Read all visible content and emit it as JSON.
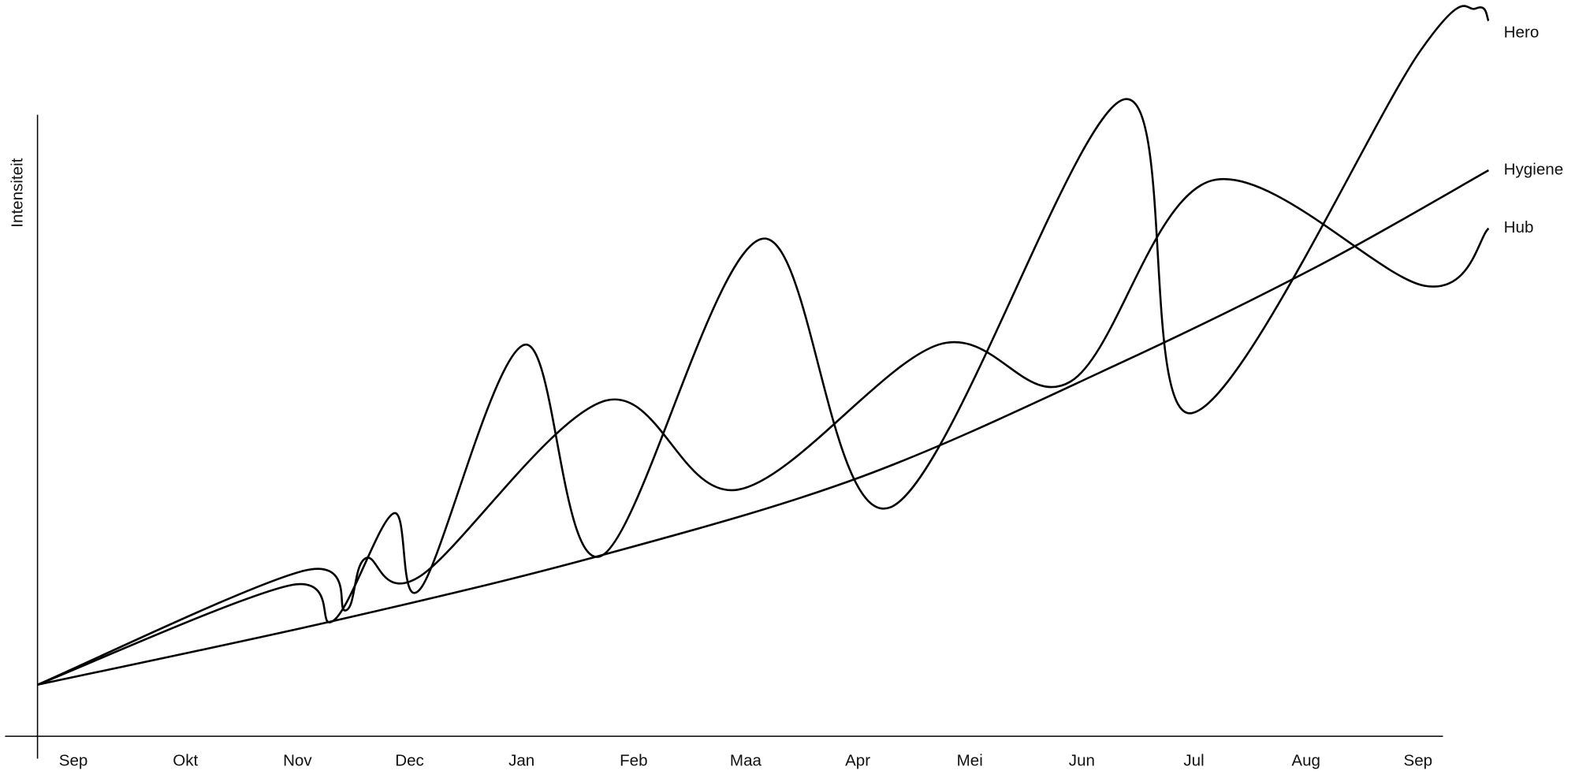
{
  "chart_data": {
    "type": "line",
    "y_label": "Intensiteit",
    "categories": [
      "Sep",
      "Okt",
      "Nov",
      "Dec",
      "Jan",
      "Feb",
      "Maa",
      "Apr",
      "Mei",
      "Jun",
      "Jul",
      "Aug",
      "Sep"
    ],
    "xlim": [
      -0.32,
      12.63
    ],
    "ylim": [
      0,
      100
    ],
    "series": [
      {
        "name": "Hero",
        "color": "#000000",
        "x": [
          -0.32,
          1.93,
          2.32,
          2.86,
          3.1,
          4.03,
          4.71,
          6.15,
          7.29,
          9.37,
          9.98,
          12.02,
          12.52,
          12.63
        ],
        "values": [
          7.0,
          20.5,
          15.7,
          30.3,
          20.1,
          53.2,
          24.5,
          67.6,
          31.1,
          86.5,
          43.9,
          93.1,
          98.9,
          97.2
        ]
      },
      {
        "name": "Hygiene",
        "color": "#000000",
        "x": [
          -0.32,
          2.33,
          4.69,
          7.04,
          9.3,
          11.11,
          12.63
        ],
        "values": [
          7.0,
          15.7,
          24.5,
          35.3,
          50.4,
          63.9,
          76.9
        ]
      },
      {
        "name": "Hub",
        "color": "#000000",
        "x": [
          -0.32,
          2.06,
          2.43,
          2.61,
          3.1,
          4.75,
          5.93,
          7.72,
          8.9,
          10.16,
          12.06,
          12.63
        ],
        "values": [
          7.0,
          22.5,
          17.1,
          24.2,
          21.8,
          45.6,
          33.5,
          53.2,
          48.2,
          75.5,
          61.2,
          69.0
        ]
      }
    ]
  }
}
